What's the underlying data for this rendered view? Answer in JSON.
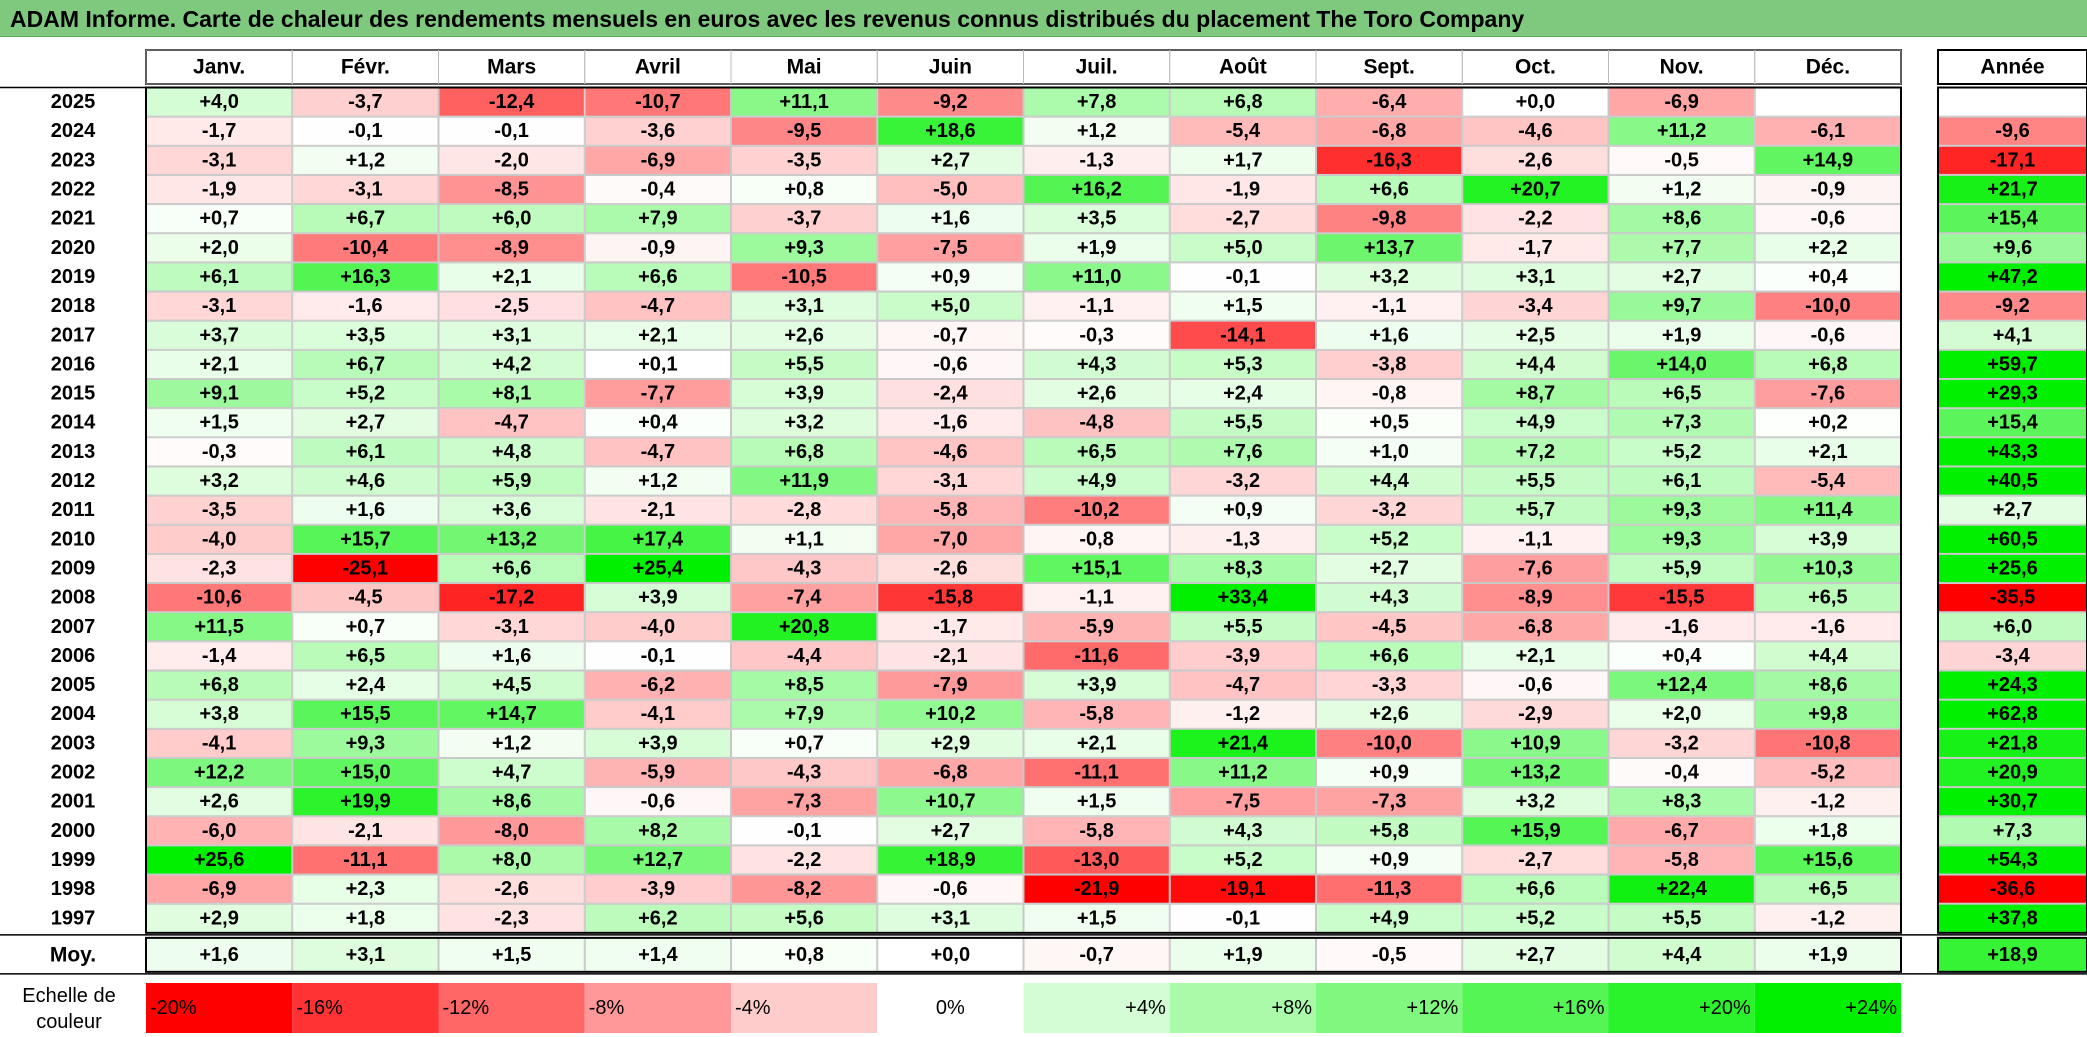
{
  "title": "ADAM Informe. Carte de chaleur des rendements mensuels en euros avec les revenus connus distribués du placement The Toro Company",
  "chart_data": {
    "type": "heatmap",
    "columns": [
      "Janv.",
      "Févr.",
      "Mars",
      "Avril",
      "Mai",
      "Juin",
      "Juil.",
      "Août",
      "Sept.",
      "Oct.",
      "Nov.",
      "Déc."
    ],
    "year_header": "Année",
    "average_label": "Moy.",
    "rows": [
      {
        "year": "2025",
        "months": [
          "+4,0",
          "-3,7",
          "-12,4",
          "-10,7",
          "+11,1",
          "-9,2",
          "+7,8",
          "+6,8",
          "-6,4",
          "+0,0",
          "-6,9",
          ""
        ],
        "annual": ""
      },
      {
        "year": "2024",
        "months": [
          "-1,7",
          "-0,1",
          "-0,1",
          "-3,6",
          "-9,5",
          "+18,6",
          "+1,2",
          "-5,4",
          "-6,8",
          "-4,6",
          "+11,2",
          "-6,1"
        ],
        "annual": "-9,6"
      },
      {
        "year": "2023",
        "months": [
          "-3,1",
          "+1,2",
          "-2,0",
          "-6,9",
          "-3,5",
          "+2,7",
          "-1,3",
          "+1,7",
          "-16,3",
          "-2,6",
          "-0,5",
          "+14,9"
        ],
        "annual": "-17,1"
      },
      {
        "year": "2022",
        "months": [
          "-1,9",
          "-3,1",
          "-8,5",
          "-0,4",
          "+0,8",
          "-5,0",
          "+16,2",
          "-1,9",
          "+6,6",
          "+20,7",
          "+1,2",
          "-0,9"
        ],
        "annual": "+21,7"
      },
      {
        "year": "2021",
        "months": [
          "+0,7",
          "+6,7",
          "+6,0",
          "+7,9",
          "-3,7",
          "+1,6",
          "+3,5",
          "-2,7",
          "-9,8",
          "-2,2",
          "+8,6",
          "-0,6"
        ],
        "annual": "+15,4"
      },
      {
        "year": "2020",
        "months": [
          "+2,0",
          "-10,4",
          "-8,9",
          "-0,9",
          "+9,3",
          "-7,5",
          "+1,9",
          "+5,0",
          "+13,7",
          "-1,7",
          "+7,7",
          "+2,2"
        ],
        "annual": "+9,6"
      },
      {
        "year": "2019",
        "months": [
          "+6,1",
          "+16,3",
          "+2,1",
          "+6,6",
          "-10,5",
          "+0,9",
          "+11,0",
          "-0,1",
          "+3,2",
          "+3,1",
          "+2,7",
          "+0,4"
        ],
        "annual": "+47,2"
      },
      {
        "year": "2018",
        "months": [
          "-3,1",
          "-1,6",
          "-2,5",
          "-4,7",
          "+3,1",
          "+5,0",
          "-1,1",
          "+1,5",
          "-1,1",
          "-3,4",
          "+9,7",
          "-10,0"
        ],
        "annual": "-9,2"
      },
      {
        "year": "2017",
        "months": [
          "+3,7",
          "+3,5",
          "+3,1",
          "+2,1",
          "+2,6",
          "-0,7",
          "-0,3",
          "-14,1",
          "+1,6",
          "+2,5",
          "+1,9",
          "-0,6"
        ],
        "annual": "+4,1"
      },
      {
        "year": "2016",
        "months": [
          "+2,1",
          "+6,7",
          "+4,2",
          "+0,1",
          "+5,5",
          "-0,6",
          "+4,3",
          "+5,3",
          "-3,8",
          "+4,4",
          "+14,0",
          "+6,8"
        ],
        "annual": "+59,7"
      },
      {
        "year": "2015",
        "months": [
          "+9,1",
          "+5,2",
          "+8,1",
          "-7,7",
          "+3,9",
          "-2,4",
          "+2,6",
          "+2,4",
          "-0,8",
          "+8,7",
          "+6,5",
          "-7,6"
        ],
        "annual": "+29,3"
      },
      {
        "year": "2014",
        "months": [
          "+1,5",
          "+2,7",
          "-4,7",
          "+0,4",
          "+3,2",
          "-1,6",
          "-4,8",
          "+5,5",
          "+0,5",
          "+4,9",
          "+7,3",
          "+0,2"
        ],
        "annual": "+15,4"
      },
      {
        "year": "2013",
        "months": [
          "-0,3",
          "+6,1",
          "+4,8",
          "-4,7",
          "+6,8",
          "-4,6",
          "+6,5",
          "+7,6",
          "+1,0",
          "+7,2",
          "+5,2",
          "+2,1"
        ],
        "annual": "+43,3"
      },
      {
        "year": "2012",
        "months": [
          "+3,2",
          "+4,6",
          "+5,9",
          "+1,2",
          "+11,9",
          "-3,1",
          "+4,9",
          "-3,2",
          "+4,4",
          "+5,5",
          "+6,1",
          "-5,4"
        ],
        "annual": "+40,5"
      },
      {
        "year": "2011",
        "months": [
          "-3,5",
          "+1,6",
          "+3,6",
          "-2,1",
          "-2,8",
          "-5,8",
          "-10,2",
          "+0,9",
          "-3,2",
          "+5,7",
          "+9,3",
          "+11,4"
        ],
        "annual": "+2,7"
      },
      {
        "year": "2010",
        "months": [
          "-4,0",
          "+15,7",
          "+13,2",
          "+17,4",
          "+1,1",
          "-7,0",
          "-0,8",
          "-1,3",
          "+5,2",
          "-1,1",
          "+9,3",
          "+3,9"
        ],
        "annual": "+60,5"
      },
      {
        "year": "2009",
        "months": [
          "-2,3",
          "-25,1",
          "+6,6",
          "+25,4",
          "-4,3",
          "-2,6",
          "+15,1",
          "+8,3",
          "+2,7",
          "-7,6",
          "+5,9",
          "+10,3"
        ],
        "annual": "+25,6"
      },
      {
        "year": "2008",
        "months": [
          "-10,6",
          "-4,5",
          "-17,2",
          "+3,9",
          "-7,4",
          "-15,8",
          "-1,1",
          "+33,4",
          "+4,3",
          "-8,9",
          "-15,5",
          "+6,5"
        ],
        "annual": "-35,5"
      },
      {
        "year": "2007",
        "months": [
          "+11,5",
          "+0,7",
          "-3,1",
          "-4,0",
          "+20,8",
          "-1,7",
          "-5,9",
          "+5,5",
          "-4,5",
          "-6,8",
          "-1,6",
          "-1,6"
        ],
        "annual": "+6,0"
      },
      {
        "year": "2006",
        "months": [
          "-1,4",
          "+6,5",
          "+1,6",
          "-0,1",
          "-4,4",
          "-2,1",
          "-11,6",
          "-3,9",
          "+6,6",
          "+2,1",
          "+0,4",
          "+4,4"
        ],
        "annual": "-3,4"
      },
      {
        "year": "2005",
        "months": [
          "+6,8",
          "+2,4",
          "+4,5",
          "-6,2",
          "+8,5",
          "-7,9",
          "+3,9",
          "-4,7",
          "-3,3",
          "-0,6",
          "+12,4",
          "+8,6"
        ],
        "annual": "+24,3"
      },
      {
        "year": "2004",
        "months": [
          "+3,8",
          "+15,5",
          "+14,7",
          "-4,1",
          "+7,9",
          "+10,2",
          "-5,8",
          "-1,2",
          "+2,6",
          "-2,9",
          "+2,0",
          "+9,8"
        ],
        "annual": "+62,8"
      },
      {
        "year": "2003",
        "months": [
          "-4,1",
          "+9,3",
          "+1,2",
          "+3,9",
          "+0,7",
          "+2,9",
          "+2,1",
          "+21,4",
          "-10,0",
          "+10,9",
          "-3,2",
          "-10,8"
        ],
        "annual": "+21,8"
      },
      {
        "year": "2002",
        "months": [
          "+12,2",
          "+15,0",
          "+4,7",
          "-5,9",
          "-4,3",
          "-6,8",
          "-11,1",
          "+11,2",
          "+0,9",
          "+13,2",
          "-0,4",
          "-5,2"
        ],
        "annual": "+20,9"
      },
      {
        "year": "2001",
        "months": [
          "+2,6",
          "+19,9",
          "+8,6",
          "-0,6",
          "-7,3",
          "+10,7",
          "+1,5",
          "-7,5",
          "-7,3",
          "+3,2",
          "+8,3",
          "-1,2"
        ],
        "annual": "+30,7"
      },
      {
        "year": "2000",
        "months": [
          "-6,0",
          "-2,1",
          "-8,0",
          "+8,2",
          "-0,1",
          "+2,7",
          "-5,8",
          "+4,3",
          "+5,8",
          "+15,9",
          "-6,7",
          "+1,8"
        ],
        "annual": "+7,3"
      },
      {
        "year": "1999",
        "months": [
          "+25,6",
          "-11,1",
          "+8,0",
          "+12,7",
          "-2,2",
          "+18,9",
          "-13,0",
          "+5,2",
          "+0,9",
          "-2,7",
          "-5,8",
          "+15,6"
        ],
        "annual": "+54,3"
      },
      {
        "year": "1998",
        "months": [
          "-6,9",
          "+2,3",
          "-2,6",
          "-3,9",
          "-8,2",
          "-0,6",
          "-21,9",
          "-19,1",
          "-11,3",
          "+6,6",
          "+22,4",
          "+6,5"
        ],
        "annual": "-36,6"
      },
      {
        "year": "1997",
        "months": [
          "+2,9",
          "+1,8",
          "-2,3",
          "+6,2",
          "+5,6",
          "+3,1",
          "+1,5",
          "-0,1",
          "+4,9",
          "+5,2",
          "+5,5",
          "-1,2"
        ],
        "annual": "+37,8"
      }
    ],
    "average": {
      "months": [
        "+1,6",
        "+3,1",
        "+1,5",
        "+1,4",
        "+0,8",
        "+0,0",
        "-0,7",
        "+1,9",
        "-0,5",
        "+2,7",
        "+4,4",
        "+1,9"
      ],
      "annual": "+18,9"
    },
    "scale_label": "Echelle de couleur",
    "scale": [
      {
        "label": "-20%",
        "value": -20
      },
      {
        "label": "-16%",
        "value": -16
      },
      {
        "label": "-12%",
        "value": -12
      },
      {
        "label": "-8%",
        "value": -8
      },
      {
        "label": "-4%",
        "value": -4
      },
      {
        "label": "0%",
        "value": 0
      },
      {
        "label": "+4%",
        "value": 4
      },
      {
        "label": "+8%",
        "value": 8
      },
      {
        "label": "+12%",
        "value": 12
      },
      {
        "label": "+16%",
        "value": 16
      },
      {
        "label": "+20%",
        "value": 20
      },
      {
        "label": "+24%",
        "value": 24
      }
    ],
    "colors": {
      "negative_max": "#ff0000",
      "neutral": "#ffffff",
      "positive_max": "#00f000",
      "title_background": "#7fc97f"
    }
  }
}
